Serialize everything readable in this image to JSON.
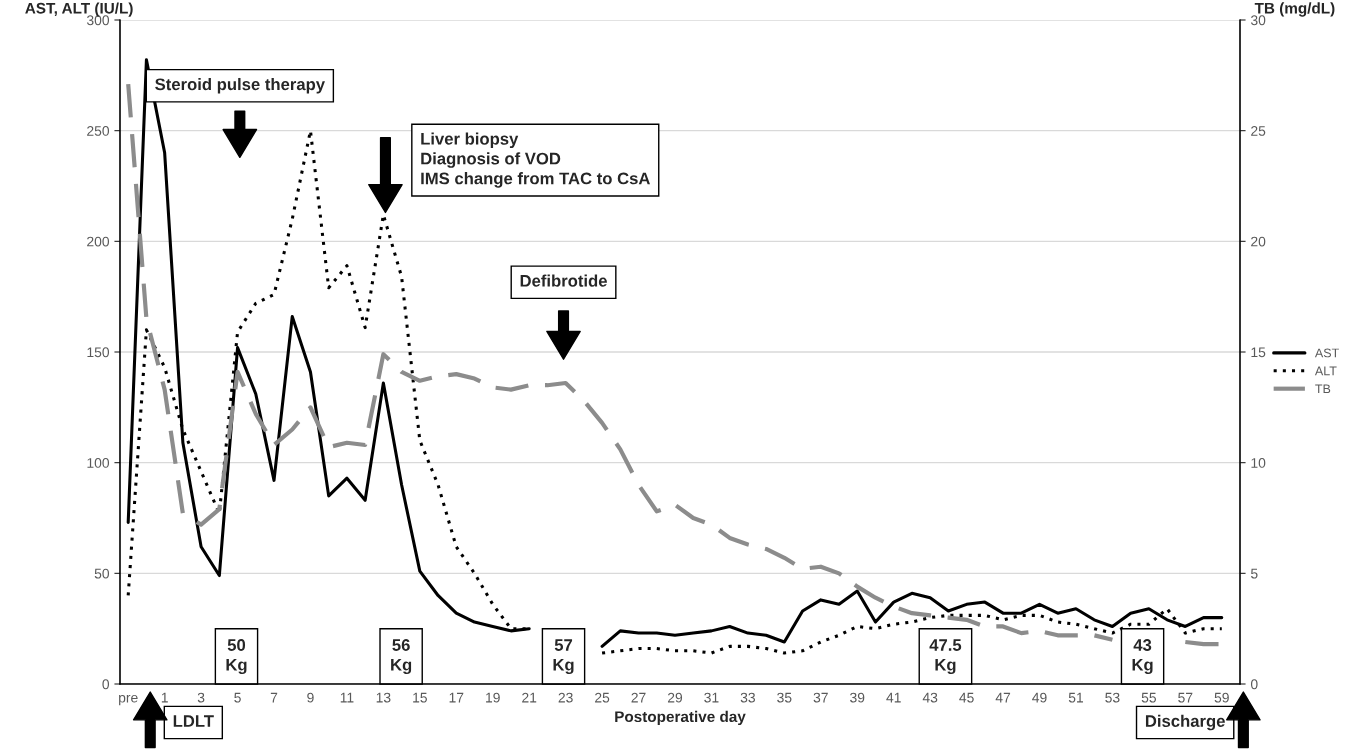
{
  "chart_data": {
    "type": "line",
    "ylabel": "AST, ALT (IU/L)",
    "y2label": "TB (mg/dL)",
    "xlabel": "Postoperative day",
    "categories": [
      "pre",
      null,
      "1",
      null,
      "3",
      null,
      "5",
      null,
      "7",
      null,
      "9",
      null,
      "11",
      null,
      "13",
      null,
      "15",
      null,
      "17",
      null,
      "19",
      null,
      "21",
      null,
      "23",
      null,
      "25",
      null,
      "27",
      null,
      "29",
      null,
      "31",
      null,
      "33",
      null,
      "35",
      null,
      "37",
      null,
      "39",
      null,
      "41",
      null,
      "43",
      null,
      "45",
      null,
      "47",
      null,
      "49",
      null,
      "51",
      null,
      "53",
      null,
      "55",
      null,
      "57",
      null,
      "59"
    ],
    "series": [
      {
        "name": "AST",
        "color": "#000000",
        "line_style": "solid",
        "values": [
          73,
          282,
          240,
          109,
          62,
          49,
          152,
          131,
          92,
          166,
          141,
          85,
          93,
          83,
          136,
          90,
          51,
          40,
          32,
          28,
          26,
          24,
          25,
          null,
          null,
          null,
          17,
          24,
          23,
          23,
          22,
          23,
          24,
          26,
          23,
          22,
          19,
          33,
          38,
          36,
          42,
          28,
          37,
          41,
          39,
          33,
          36,
          37,
          32,
          32,
          36,
          32,
          34,
          29,
          26,
          32,
          34,
          29,
          26,
          30,
          30
        ]
      },
      {
        "name": "ALT",
        "color": "#000000",
        "line_style": "dotted",
        "values": [
          40,
          160,
          143,
          115,
          96,
          77,
          159,
          172,
          176,
          210,
          250,
          179,
          189,
          161,
          212,
          184,
          110,
          90,
          62,
          50,
          36,
          25,
          25,
          null,
          null,
          null,
          14,
          15,
          16,
          16,
          15,
          15,
          14,
          17,
          17,
          16,
          14,
          15,
          19,
          22,
          26,
          25,
          27,
          28,
          30,
          31,
          31,
          31,
          29,
          31,
          31,
          28,
          27,
          25,
          23,
          27,
          27,
          34,
          23,
          25,
          25
        ]
      },
      {
        "name": "TB",
        "color": "#8c8c8c",
        "line_style": "dashed",
        "axis": "y2",
        "values": [
          27.1,
          16.5,
          13.3,
          7.7,
          7.2,
          7.9,
          14.1,
          12.2,
          10.8,
          11.5,
          12.5,
          10.7,
          10.9,
          10.8,
          14.9,
          14.1,
          13.7,
          13.9,
          14.0,
          13.8,
          13.4,
          13.3,
          13.5,
          13.5,
          13.6,
          12.8,
          11.8,
          10.6,
          9.0,
          7.8,
          8.1,
          7.5,
          7.2,
          6.6,
          6.3,
          6.1,
          5.7,
          5.2,
          5.3,
          5.0,
          4.4,
          3.9,
          3.5,
          3.2,
          3.1,
          3.0,
          2.9,
          2.6,
          2.6,
          2.3,
          2.4,
          2.2,
          2.2,
          2.2,
          2.0,
          null,
          null,
          null,
          1.9,
          1.8,
          1.8
        ]
      }
    ],
    "ylim": [
      0,
      300
    ],
    "yticks": [
      0,
      50,
      100,
      150,
      200,
      250,
      300
    ],
    "y2lim": [
      0,
      30
    ],
    "y2ticks": [
      0,
      5,
      10,
      15,
      20,
      25,
      30
    ],
    "grid": "y",
    "legend": "right",
    "annotations": [
      "Steroid pulse therapy",
      "Liver biopsy\nDiagnosis of VOD\nIMS change from TAC to CsA",
      "Defibrotide",
      "50\nKg",
      "56\nKg",
      "57\nKg",
      "47.5\nKg",
      "43\nKg",
      "LDLT",
      "Discharge"
    ]
  }
}
